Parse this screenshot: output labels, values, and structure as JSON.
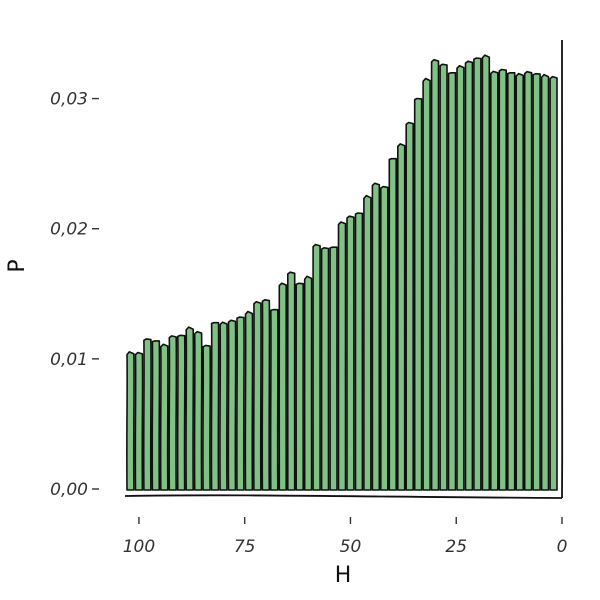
{
  "chart_data": {
    "type": "bar",
    "xlabel": "H",
    "ylabel": "P",
    "x_reversed": true,
    "xlim": [
      104,
      0
    ],
    "ylim": [
      0,
      0.0345
    ],
    "x_ticks": [
      100,
      75,
      50,
      25,
      0
    ],
    "x_tick_labels": [
      "100",
      "75",
      "50",
      "25",
      "0"
    ],
    "y_ticks": [
      0,
      0.01,
      0.02,
      0.03
    ],
    "y_tick_labels": [
      "0,00",
      "0,01",
      "0,02",
      "0,03"
    ],
    "grid": false,
    "bar_color": "#80c186",
    "edge_color": "#111111",
    "series": [
      {
        "x": [
          102,
          100,
          98,
          96,
          94,
          92,
          90,
          88,
          86,
          84,
          82,
          80,
          78,
          76,
          74,
          72,
          70,
          68,
          66,
          64,
          62,
          60,
          58,
          56,
          54,
          52,
          50,
          48,
          46,
          44,
          42,
          40,
          38,
          36,
          34,
          32,
          30,
          28,
          26,
          24,
          22,
          20,
          18,
          16,
          14,
          12,
          10,
          8,
          6,
          4,
          2
        ],
        "values": [
          0.0104,
          0.0104,
          0.0115,
          0.0114,
          0.011,
          0.0117,
          0.0118,
          0.0123,
          0.012,
          0.011,
          0.0128,
          0.0127,
          0.0129,
          0.0132,
          0.0135,
          0.0143,
          0.0145,
          0.0138,
          0.0157,
          0.0166,
          0.0158,
          0.0162,
          0.0187,
          0.0185,
          0.0186,
          0.0204,
          0.0209,
          0.0212,
          0.0224,
          0.0234,
          0.0232,
          0.0254,
          0.0264,
          0.0281,
          0.03,
          0.0314,
          0.0329,
          0.0326,
          0.032,
          0.0324,
          0.0328,
          0.0331,
          0.0332,
          0.032,
          0.0322,
          0.032,
          0.0318,
          0.032,
          0.0319,
          0.0317,
          0.0316
        ]
      }
    ]
  }
}
